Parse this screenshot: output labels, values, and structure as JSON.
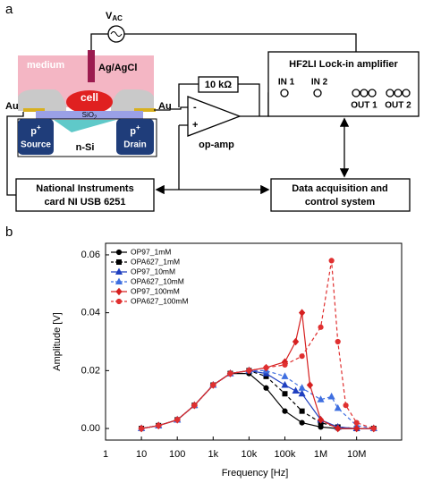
{
  "diagram": {
    "panel_a": "a",
    "vac": {
      "main": "V",
      "sub": "AC"
    },
    "medium": "medium",
    "electrode": "Ag/AgCl",
    "cell": "cell",
    "au_left": "Au",
    "au_right": "Au",
    "oxide": {
      "main": "SiO",
      "sub": "2"
    },
    "source": {
      "doping": "p",
      "sup": "+",
      "label": "Source"
    },
    "drain": {
      "doping": "p",
      "sup": "+",
      "label": "Drain"
    },
    "substrate": "n-Si",
    "resistor": "10 kΩ",
    "opamp": {
      "label": "op-amp",
      "minus": "-",
      "plus": "+"
    },
    "lockin": {
      "title": "HF2LI Lock-in amplifier",
      "in1": "IN 1",
      "in2": "IN 2",
      "out1": "OUT 1",
      "out2": "OUT 2"
    },
    "ni_card": [
      "National Instruments",
      "card NI USB 6251"
    ],
    "daq": [
      "Data acquisition and",
      "control system"
    ],
    "panel_b": "b"
  },
  "chart_data": {
    "type": "line",
    "xlabel": "Frequency [Hz]",
    "ylabel": "Amplitude [V]",
    "xscale": "log",
    "xlim": [
      1,
      180000000
    ],
    "ylim": [
      -0.004,
      0.064
    ],
    "xticks": [
      1,
      10,
      100,
      {
        "value": 1000,
        "label": "1k"
      },
      {
        "value": 10000,
        "label": "10k"
      },
      {
        "value": 100000,
        "label": "100k"
      },
      {
        "value": 1000000,
        "label": "1M"
      },
      {
        "value": 10000000,
        "label": "10M"
      }
    ],
    "yticks": [
      {
        "value": 0,
        "label": "0.00"
      },
      0.02,
      0.04,
      0.06
    ],
    "legend": "upper left",
    "series": [
      {
        "name": "OP97_1mM",
        "color": "#000000",
        "dash": false,
        "marker": "circle",
        "x": [
          10,
          30,
          100,
          300,
          1000,
          3000,
          10000,
          30000,
          100000,
          300000,
          1000000,
          3000000,
          10000000,
          30000000
        ],
        "values": [
          0,
          0.001,
          0.003,
          0.008,
          0.015,
          0.019,
          0.019,
          0.014,
          0.006,
          0.002,
          0.0005,
          0,
          0,
          0
        ]
      },
      {
        "name": "OPA627_1mM",
        "color": "#000000",
        "dash": true,
        "marker": "square",
        "x": [
          10,
          30,
          100,
          300,
          1000,
          3000,
          10000,
          30000,
          100000,
          300000,
          1000000,
          3000000,
          10000000,
          30000000
        ],
        "values": [
          0,
          0.001,
          0.003,
          0.008,
          0.015,
          0.019,
          0.02,
          0.018,
          0.012,
          0.006,
          0.002,
          0.0005,
          0,
          0
        ]
      },
      {
        "name": "OP97_10mM",
        "color": "#1f3fbf",
        "dash": false,
        "marker": "triangle",
        "x": [
          10,
          30,
          100,
          300,
          1000,
          3000,
          10000,
          30000,
          100000,
          200000,
          300000,
          1000000,
          3000000,
          10000000,
          30000000
        ],
        "values": [
          0,
          0.001,
          0.003,
          0.008,
          0.015,
          0.019,
          0.02,
          0.019,
          0.015,
          0.013,
          0.012,
          0.003,
          0.0005,
          0,
          0
        ]
      },
      {
        "name": "OPA627_10mM",
        "color": "#3f6fe0",
        "dash": true,
        "marker": "triangle",
        "x": [
          10,
          30,
          100,
          300,
          1000,
          3000,
          10000,
          30000,
          100000,
          300000,
          1000000,
          2000000,
          3000000,
          10000000,
          30000000
        ],
        "values": [
          0,
          0.001,
          0.003,
          0.008,
          0.015,
          0.019,
          0.02,
          0.02,
          0.018,
          0.014,
          0.01,
          0.011,
          0.007,
          0.001,
          0
        ]
      },
      {
        "name": "OP97_100mM",
        "color": "#d62020",
        "dash": false,
        "marker": "diamond",
        "x": [
          10,
          30,
          100,
          300,
          1000,
          3000,
          10000,
          30000,
          100000,
          200000,
          300000,
          500000,
          1000000,
          3000000,
          10000000,
          30000000
        ],
        "values": [
          0,
          0.001,
          0.003,
          0.008,
          0.015,
          0.019,
          0.02,
          0.021,
          0.023,
          0.03,
          0.04,
          0.015,
          0.003,
          0,
          0,
          0
        ]
      },
      {
        "name": "OPA627_100mM",
        "color": "#e03030",
        "dash": true,
        "marker": "circle",
        "x": [
          10,
          30,
          100,
          300,
          1000,
          3000,
          10000,
          30000,
          100000,
          300000,
          1000000,
          2000000,
          3000000,
          5000000,
          10000000,
          30000000
        ],
        "values": [
          0,
          0.001,
          0.003,
          0.008,
          0.015,
          0.019,
          0.02,
          0.021,
          0.022,
          0.025,
          0.035,
          0.058,
          0.03,
          0.008,
          0.002,
          0
        ]
      }
    ]
  }
}
